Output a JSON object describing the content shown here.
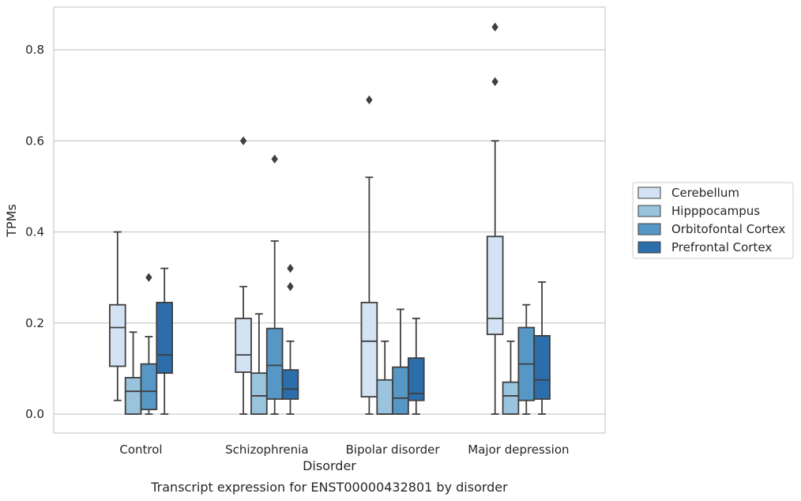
{
  "chart_data": {
    "type": "box",
    "title": "Transcript expression for ENST00000432801 by disorder",
    "xlabel": "Disorder",
    "ylabel": "TPMs",
    "ylim": [
      -0.04,
      0.895
    ],
    "yticks": [
      0.0,
      0.2,
      0.4,
      0.6,
      0.8
    ],
    "grid": true,
    "legend_position": "right",
    "categories": [
      "Control",
      "Schizophrenia",
      "Bipolar disorder",
      "Major depression"
    ],
    "series": [
      {
        "name": "Cerebellum",
        "color": "#d4e3f3",
        "boxes": [
          {
            "q1": 0.105,
            "median": 0.19,
            "q3": 0.24,
            "whisker_low": 0.03,
            "whisker_high": 0.4,
            "outliers": []
          },
          {
            "q1": 0.092,
            "median": 0.13,
            "q3": 0.21,
            "whisker_low": 0.0,
            "whisker_high": 0.28,
            "outliers": [
              0.6
            ]
          },
          {
            "q1": 0.038,
            "median": 0.16,
            "q3": 0.245,
            "whisker_low": 0.0,
            "whisker_high": 0.52,
            "outliers": [
              0.69
            ]
          },
          {
            "q1": 0.175,
            "median": 0.21,
            "q3": 0.39,
            "whisker_low": 0.0,
            "whisker_high": 0.6,
            "outliers": [
              0.73,
              0.85
            ]
          }
        ]
      },
      {
        "name": "Hipppocampus",
        "color": "#9ac3dd",
        "boxes": [
          {
            "q1": 0.0,
            "median": 0.05,
            "q3": 0.08,
            "whisker_low": 0.0,
            "whisker_high": 0.18,
            "outliers": []
          },
          {
            "q1": 0.0,
            "median": 0.04,
            "q3": 0.09,
            "whisker_low": 0.0,
            "whisker_high": 0.22,
            "outliers": []
          },
          {
            "q1": 0.0,
            "median": 0.0,
            "q3": 0.075,
            "whisker_low": 0.0,
            "whisker_high": 0.16,
            "outliers": []
          },
          {
            "q1": 0.0,
            "median": 0.04,
            "q3": 0.07,
            "whisker_low": 0.0,
            "whisker_high": 0.16,
            "outliers": []
          }
        ]
      },
      {
        "name": "Orbitofontal Cortex",
        "color": "#5797c6",
        "boxes": [
          {
            "q1": 0.01,
            "median": 0.05,
            "q3": 0.11,
            "whisker_low": 0.0,
            "whisker_high": 0.17,
            "outliers": [
              0.3
            ]
          },
          {
            "q1": 0.033,
            "median": 0.107,
            "q3": 0.188,
            "whisker_low": 0.0,
            "whisker_high": 0.38,
            "outliers": [
              0.56
            ]
          },
          {
            "q1": 0.0,
            "median": 0.035,
            "q3": 0.103,
            "whisker_low": 0.0,
            "whisker_high": 0.23,
            "outliers": []
          },
          {
            "q1": 0.03,
            "median": 0.11,
            "q3": 0.19,
            "whisker_low": 0.0,
            "whisker_high": 0.24,
            "outliers": []
          }
        ]
      },
      {
        "name": "Prefrontal Cortex",
        "color": "#2c6eab",
        "boxes": [
          {
            "q1": 0.09,
            "median": 0.13,
            "q3": 0.245,
            "whisker_low": 0.0,
            "whisker_high": 0.32,
            "outliers": []
          },
          {
            "q1": 0.033,
            "median": 0.055,
            "q3": 0.097,
            "whisker_low": 0.0,
            "whisker_high": 0.16,
            "outliers": [
              0.28,
              0.32
            ]
          },
          {
            "q1": 0.03,
            "median": 0.045,
            "q3": 0.123,
            "whisker_low": 0.0,
            "whisker_high": 0.21,
            "outliers": []
          },
          {
            "q1": 0.033,
            "median": 0.075,
            "q3": 0.172,
            "whisker_low": 0.0,
            "whisker_high": 0.29,
            "outliers": []
          }
        ]
      }
    ]
  }
}
